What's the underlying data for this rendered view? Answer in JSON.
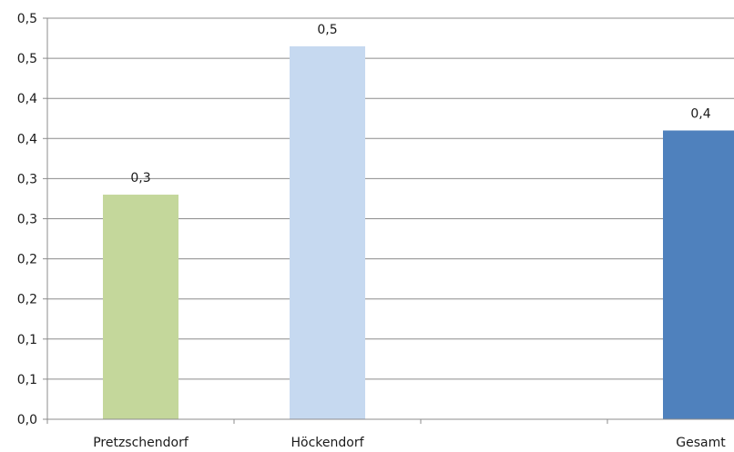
{
  "chart_data": {
    "type": "bar",
    "title": "",
    "xlabel": "",
    "ylabel": "",
    "ylim": [
      0,
      0.5
    ],
    "y_tick_values": [
      0,
      0.05,
      0.1,
      0.15,
      0.2,
      0.25,
      0.3,
      0.35,
      0.4,
      0.45,
      0.5
    ],
    "y_tick_labels": [
      "0,0",
      "0,1",
      "0,1",
      "0,2",
      "0,2",
      "0,3",
      "0,3",
      "0,4",
      "0,4",
      "0,5",
      "0,5"
    ],
    "categories": [
      "Pretzschendorf",
      "Höckendorf",
      "",
      "Gesamt"
    ],
    "values": [
      0.28,
      0.465,
      null,
      0.36
    ],
    "data_labels": [
      "0,3",
      "0,5",
      "",
      "0,4"
    ],
    "colors": [
      "#c4d79b",
      "#c6d9f0",
      "#ffffff",
      "#4f81bd"
    ],
    "gridlines": true,
    "grid_color": "#8c8c8c",
    "legend": "none"
  }
}
